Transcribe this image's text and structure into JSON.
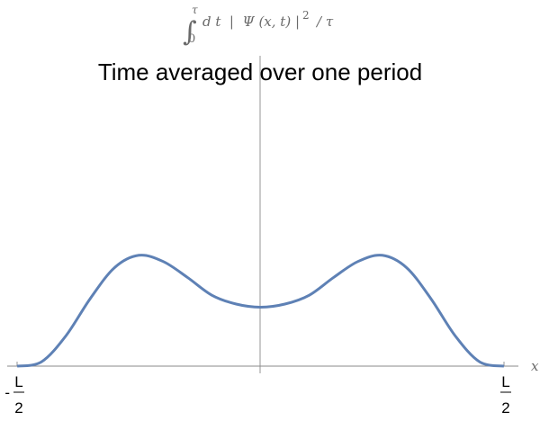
{
  "header": {
    "integral_upper": "τ",
    "integral_lower": "0",
    "integrand": "d t  |  Ψ (x, t) |",
    "power": "2",
    "divisor": "/ τ"
  },
  "chart_data": {
    "type": "line",
    "title": "Time averaged over one period",
    "xlabel": "x",
    "ylabel": "",
    "xlim": [
      -0.5,
      0.5
    ],
    "x_ticks": [
      {
        "value": -0.5,
        "sign": "-",
        "numerator": "L",
        "denominator": "2"
      },
      {
        "value": 0.5,
        "sign": "",
        "numerator": "L",
        "denominator": "2"
      }
    ],
    "series": [
      {
        "color": "#5e81b5",
        "x": [
          -0.5,
          -0.45,
          -0.4,
          -0.35,
          -0.3,
          -0.25,
          -0.2,
          -0.15,
          -0.1,
          -0.05,
          0,
          0.05,
          0.1,
          0.15,
          0.2,
          0.25,
          0.3,
          0.35,
          0.4,
          0.45,
          0.5
        ],
        "y": [
          0,
          0.048,
          0.34,
          0.76,
          1.11,
          1.25,
          1.18,
          1.0,
          0.8,
          0.7,
          0.665,
          0.7,
          0.8,
          1.0,
          1.18,
          1.25,
          1.11,
          0.76,
          0.34,
          0.048,
          0
        ]
      }
    ],
    "ylim": [
      0,
      3.5
    ],
    "grid": false,
    "axis_color": "#8a8a8a"
  }
}
